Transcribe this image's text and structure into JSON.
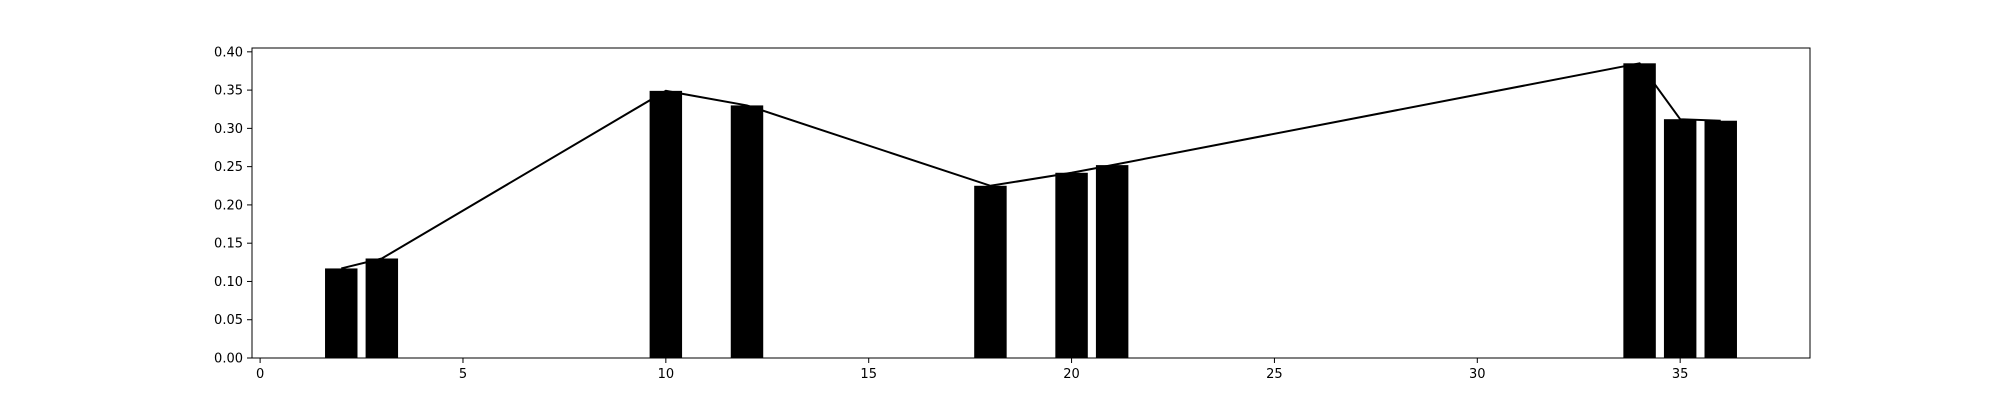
{
  "chart_data": {
    "type": "bar",
    "title": "",
    "xlabel": "",
    "ylabel": "",
    "xlim": [
      -0.2,
      38.2
    ],
    "ylim": [
      0,
      0.405
    ],
    "grid": false,
    "bar_width": 0.8,
    "colors": {
      "bar": "#000000",
      "line": "#000000",
      "axes": "#000000",
      "background": "#ffffff"
    },
    "x_ticks": [
      {
        "value": 0,
        "label": "0"
      },
      {
        "value": 5,
        "label": "5"
      },
      {
        "value": 10,
        "label": "10"
      },
      {
        "value": 15,
        "label": "15"
      },
      {
        "value": 20,
        "label": "20"
      },
      {
        "value": 25,
        "label": "25"
      },
      {
        "value": 30,
        "label": "30"
      },
      {
        "value": 35,
        "label": "35"
      }
    ],
    "y_ticks": [
      {
        "value": 0.0,
        "label": "0.00"
      },
      {
        "value": 0.05,
        "label": "0.05"
      },
      {
        "value": 0.1,
        "label": "0.10"
      },
      {
        "value": 0.15,
        "label": "0.15"
      },
      {
        "value": 0.2,
        "label": "0.20"
      },
      {
        "value": 0.25,
        "label": "0.25"
      },
      {
        "value": 0.3,
        "label": "0.30"
      },
      {
        "value": 0.35,
        "label": "0.35"
      },
      {
        "value": 0.4,
        "label": "0.40"
      }
    ],
    "x": [
      2,
      3,
      10,
      12,
      18,
      20,
      21,
      34,
      35,
      36
    ],
    "values": [
      0.117,
      0.13,
      0.349,
      0.33,
      0.225,
      0.242,
      0.252,
      0.385,
      0.312,
      0.31
    ],
    "line": {
      "x": [
        2,
        3,
        10,
        12,
        18,
        20,
        21,
        34,
        35,
        36
      ],
      "values": [
        0.117,
        0.13,
        0.349,
        0.33,
        0.225,
        0.242,
        0.252,
        0.385,
        0.312,
        0.31
      ]
    }
  }
}
